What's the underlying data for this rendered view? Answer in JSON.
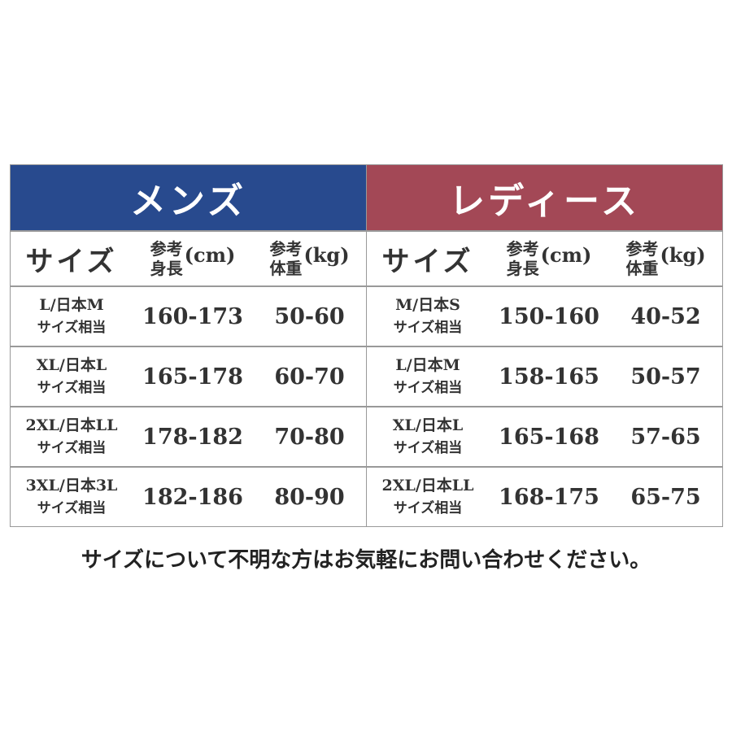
{
  "men": {
    "title": "メンズ",
    "color": "#284a8e",
    "headers": {
      "size": "サイズ",
      "height_label_top": "参考",
      "height_label_bottom": "身長",
      "height_unit": "(cm)",
      "weight_label_top": "参考",
      "weight_label_bottom": "体重",
      "weight_unit": "(kg)"
    },
    "rows": [
      {
        "size": "L/日本M",
        "note": "サイズ相当",
        "height": "160-173",
        "weight": "50-60"
      },
      {
        "size": "XL/日本L",
        "note": "サイズ相当",
        "height": "165-178",
        "weight": "60-70"
      },
      {
        "size": "2XL/日本LL",
        "note": "サイズ相当",
        "height": "178-182",
        "weight": "70-80"
      },
      {
        "size": "3XL/日本3L",
        "note": "サイズ相当",
        "height": "182-186",
        "weight": "80-90"
      }
    ]
  },
  "women": {
    "title": "レディース",
    "color": "#a34856",
    "headers": {
      "size": "サイズ",
      "height_label_top": "参考",
      "height_label_bottom": "身長",
      "height_unit": "(cm)",
      "weight_label_top": "参考",
      "weight_label_bottom": "体重",
      "weight_unit": "(kg)"
    },
    "rows": [
      {
        "size": "M/日本S",
        "note": "サイズ相当",
        "height": "150-160",
        "weight": "40-52"
      },
      {
        "size": "L/日本M",
        "note": "サイズ相当",
        "height": "158-165",
        "weight": "50-57"
      },
      {
        "size": "XL/日本L",
        "note": "サイズ相当",
        "height": "165-168",
        "weight": "57-65"
      },
      {
        "size": "2XL/日本LL",
        "note": "サイズ相当",
        "height": "168-175",
        "weight": "65-75"
      }
    ]
  },
  "footer_note": "サイズについて不明な方はお気軽にお問い合わせください。"
}
